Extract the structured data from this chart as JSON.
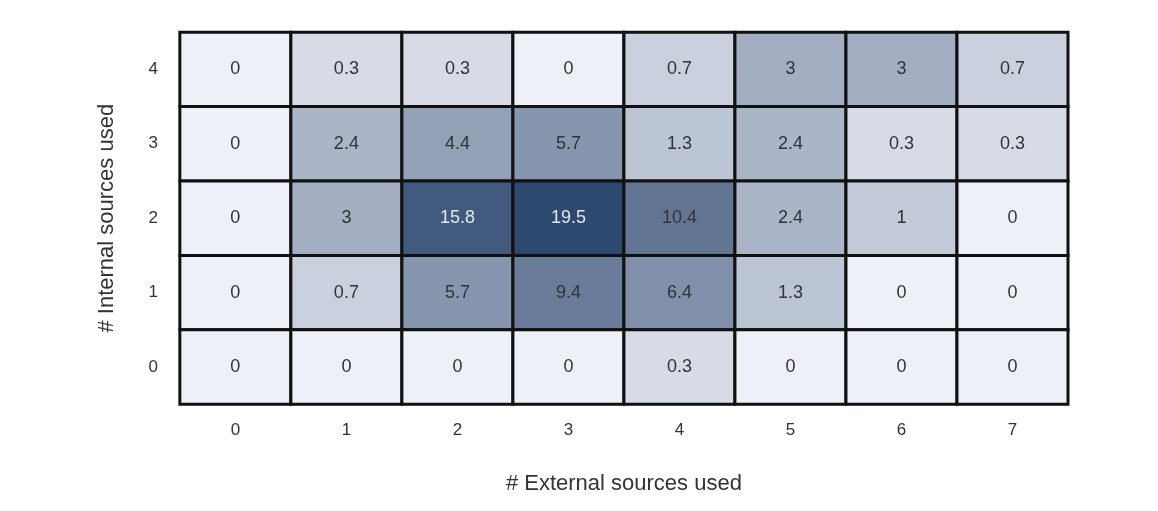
{
  "chart_data": {
    "type": "heatmap",
    "xlabel": "# External sources used",
    "ylabel": "# Internal sources used",
    "categories": [
      "0",
      "1",
      "2",
      "3",
      "4",
      "5",
      "6",
      "7"
    ],
    "y_categories": [
      "4",
      "3",
      "2",
      "1",
      "0"
    ],
    "cells": [
      [
        0,
        0.3,
        0.3,
        0,
        0.7,
        3,
        3,
        0.7
      ],
      [
        0,
        2.4,
        4.4,
        5.7,
        1.3,
        2.4,
        0.3,
        0.3
      ],
      [
        0,
        3,
        15.8,
        19.5,
        10.4,
        2.4,
        1,
        0
      ],
      [
        0,
        0.7,
        5.7,
        9.4,
        6.4,
        1.3,
        0,
        0
      ],
      [
        0,
        0,
        0,
        0,
        0.3,
        0,
        0,
        0
      ]
    ],
    "data_labels": true,
    "legend": false
  }
}
